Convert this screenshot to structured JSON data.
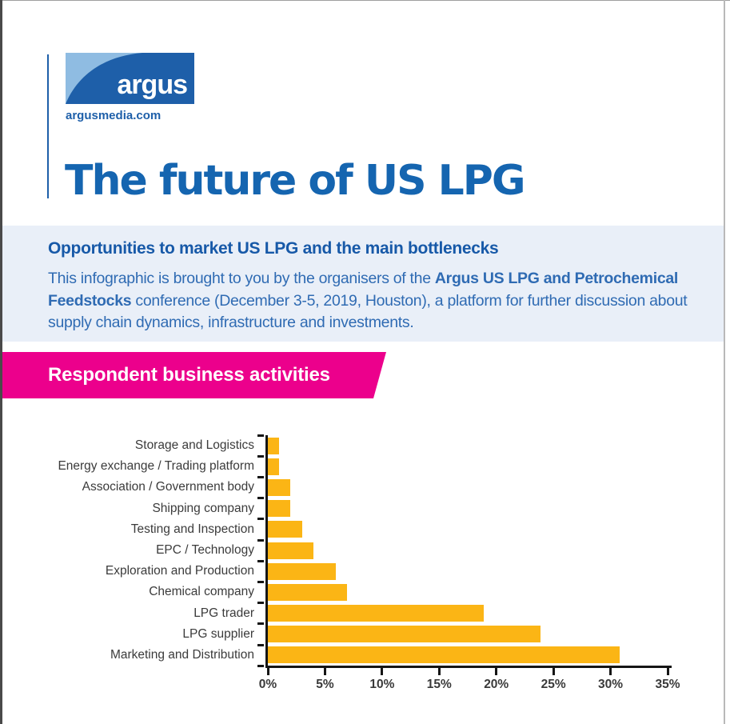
{
  "page": {
    "logo": {
      "brand": "argus",
      "website": "argusmedia.com"
    },
    "title": "The future of US LPG",
    "intro": {
      "heading": "Opportunities to market US LPG and the main bottlenecks",
      "body_part1": "This infographic is brought to you by the organisers of the ",
      "body_bold": "Argus US LPG and Petrochemical Feedstocks",
      "body_part2": " conference (December 3-5, 2019, Houston), a platform for further discussion about supply chain dynamics, infrastructure and investments."
    },
    "section_banner": "Respondent business activities"
  },
  "colors": {
    "logo_blue": "#1E5FA9",
    "logo_light_blue": "#8FBCE2",
    "title_blue": "#1565B0",
    "band_background": "#E9EFF8",
    "band_heading": "#1759A8",
    "band_text": "#2F6BB3",
    "banner_pink": "#EC008C",
    "bar_yellow": "#FBB515",
    "axis_black": "#151515",
    "label_gray": "#3B3B3B"
  },
  "chart_data": {
    "type": "bar",
    "orientation": "horizontal",
    "title": "Respondent business activities",
    "categories": [
      "Storage and Logistics",
      "Energy exchange / Trading platform",
      "Association / Government body",
      "Shipping company",
      "Testing and Inspection",
      "EPC / Technology",
      "Exploration and Production",
      "Chemical company",
      "LPG trader",
      "LPG supplier",
      "Marketing and Distribution"
    ],
    "values": [
      1,
      1,
      2,
      2,
      3,
      4,
      6,
      7,
      19,
      24,
      31
    ],
    "unit": "%",
    "xlabel": "",
    "ylabel": "",
    "xlim": [
      0,
      35
    ],
    "xticks": [
      "0%",
      "5%",
      "10%",
      "15%",
      "20%",
      "25%",
      "30%",
      "35%"
    ],
    "grid": false,
    "legend": false,
    "bar_color": "#FBB515"
  }
}
